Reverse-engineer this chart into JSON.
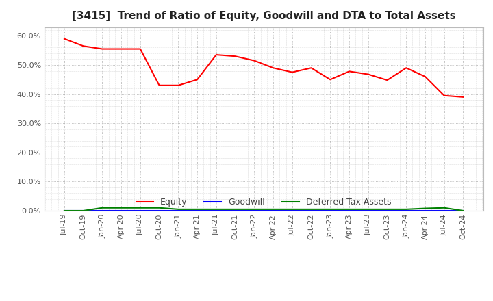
{
  "title": "[3415]  Trend of Ratio of Equity, Goodwill and DTA to Total Assets",
  "x_labels": [
    "Jul-19",
    "Oct-19",
    "Jan-20",
    "Apr-20",
    "Jul-20",
    "Oct-20",
    "Jan-21",
    "Apr-21",
    "Jul-21",
    "Oct-21",
    "Jan-22",
    "Apr-22",
    "Jul-22",
    "Oct-22",
    "Jan-23",
    "Apr-23",
    "Jul-23",
    "Oct-23",
    "Jan-24",
    "Apr-24",
    "Jul-24",
    "Oct-24"
  ],
  "equity": [
    0.59,
    0.565,
    0.555,
    0.555,
    0.555,
    0.43,
    0.43,
    0.45,
    0.535,
    0.53,
    0.515,
    0.49,
    0.475,
    0.49,
    0.45,
    0.478,
    0.468,
    0.448,
    0.49,
    0.46,
    0.395,
    0.39
  ],
  "goodwill": [
    0.0,
    0.0,
    0.0,
    0.0,
    0.0,
    0.0,
    0.0,
    0.0,
    0.0,
    0.0,
    0.0,
    0.0,
    0.0,
    0.0,
    0.0,
    0.0,
    0.0,
    0.0,
    0.0,
    0.0,
    0.0,
    0.0
  ],
  "dta": [
    0.0,
    0.0,
    0.01,
    0.01,
    0.01,
    0.01,
    0.005,
    0.005,
    0.005,
    0.005,
    0.005,
    0.005,
    0.005,
    0.005,
    0.005,
    0.005,
    0.005,
    0.005,
    0.005,
    0.008,
    0.01,
    0.0
  ],
  "equity_color": "#ff0000",
  "goodwill_color": "#0000ff",
  "dta_color": "#008000",
  "ylim": [
    0.0,
    0.63
  ],
  "yticks": [
    0.0,
    0.1,
    0.2,
    0.3,
    0.4,
    0.5,
    0.6
  ],
  "background_color": "#ffffff",
  "plot_bg_color": "#ffffff",
  "grid_color": "#999999",
  "title_fontsize": 11,
  "tick_fontsize": 8,
  "legend_labels": [
    "Equity",
    "Goodwill",
    "Deferred Tax Assets"
  ]
}
